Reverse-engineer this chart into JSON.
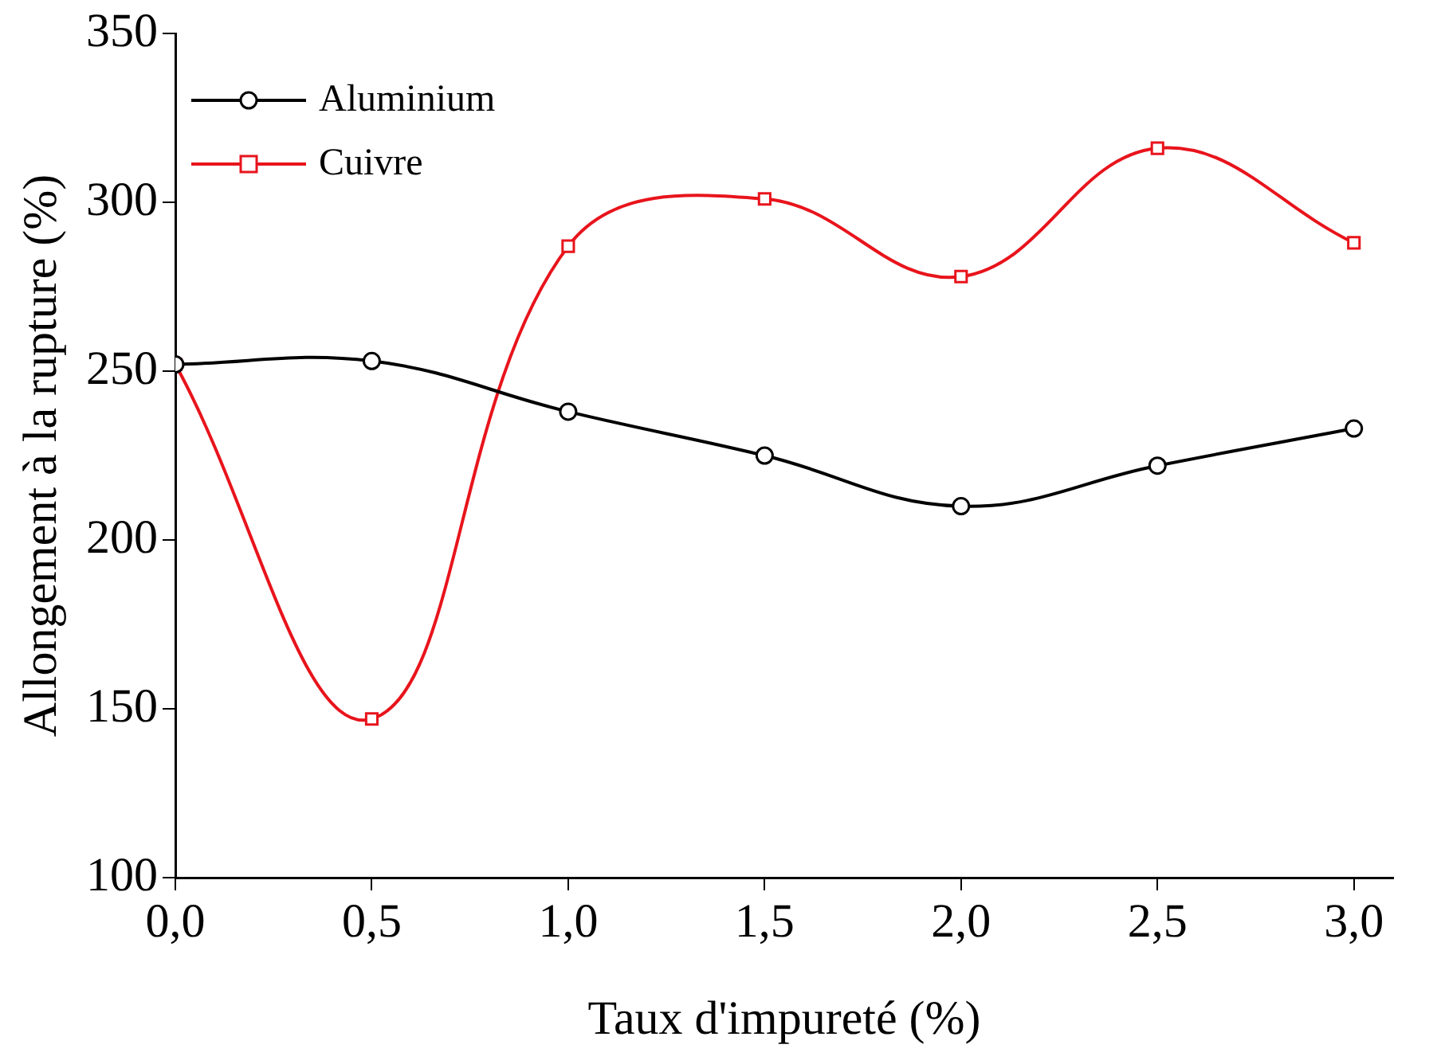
{
  "chart_data": {
    "type": "line",
    "xlabel": "Taux d'impureté (%)",
    "ylabel": "Allongement à la rupture (%)",
    "x": [
      0,
      0.5,
      1,
      1.5,
      2,
      2.5,
      3
    ],
    "series": [
      {
        "name": "Aluminium",
        "color": "#000000",
        "marker": "circle",
        "values": [
          252,
          253,
          238,
          225,
          210,
          222,
          233
        ]
      },
      {
        "name": "Cuivre",
        "color": "#e8141c",
        "marker": "square",
        "values": [
          252,
          147,
          287,
          301,
          278,
          316,
          288
        ]
      }
    ],
    "xlim": [
      0,
      3.1
    ],
    "xticks": [
      {
        "value": 0,
        "label": "0,0"
      },
      {
        "value": 0.5,
        "label": "0,5"
      },
      {
        "value": 1,
        "label": "1,0"
      },
      {
        "value": 1.5,
        "label": "1,5"
      },
      {
        "value": 2,
        "label": "2,0"
      },
      {
        "value": 2.5,
        "label": "2,5"
      },
      {
        "value": 3,
        "label": "3,0"
      }
    ],
    "ylim": [
      100,
      350
    ],
    "yticks": [
      100,
      150,
      200,
      250,
      300,
      350
    ],
    "grid": false,
    "legend": "top left",
    "line_style": "solid"
  }
}
